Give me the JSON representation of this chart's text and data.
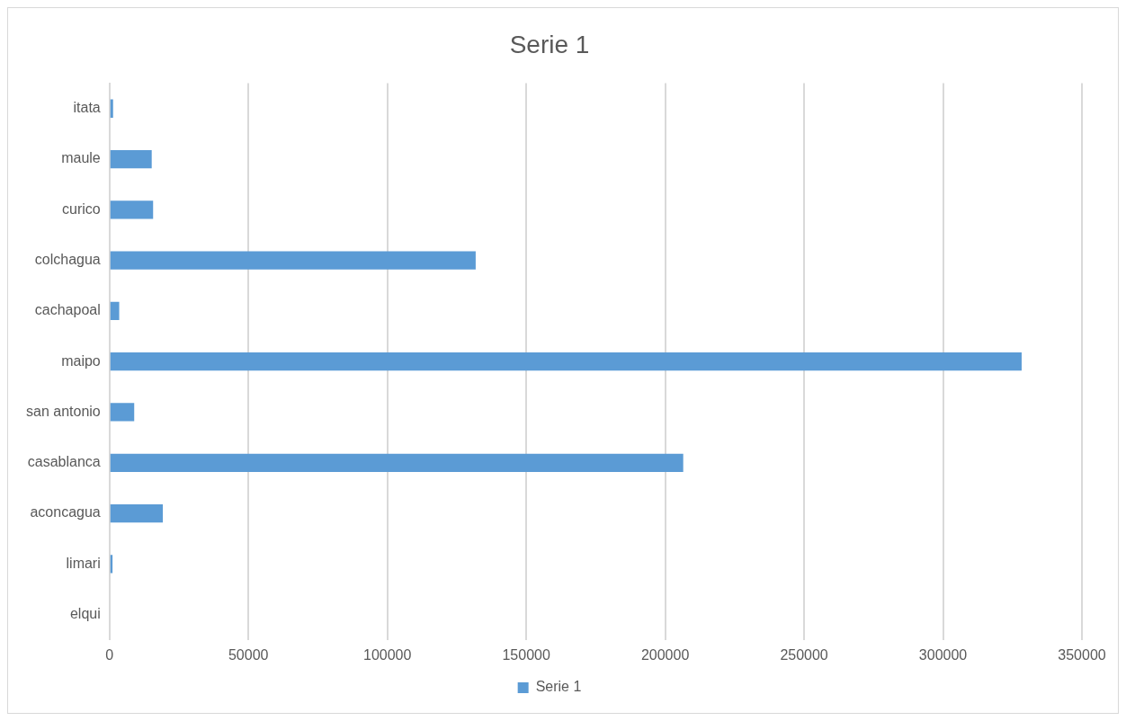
{
  "chart_data": {
    "type": "bar",
    "orientation": "horizontal",
    "title": "Serie 1",
    "categories": [
      "itata",
      "maule",
      "curico",
      "colchagua",
      "cachapoal",
      "maipo",
      "san antonio",
      "casablanca",
      "aconcagua",
      "limari",
      "elqui"
    ],
    "series": [
      {
        "name": "Serie 1",
        "color": "#5b9bd5",
        "values": [
          1300,
          15200,
          15700,
          131800,
          3500,
          328300,
          8900,
          206500,
          19200,
          1100,
          0
        ]
      }
    ],
    "xlim": [
      0,
      350000
    ],
    "xticks": [
      0,
      50000,
      100000,
      150000,
      200000,
      250000,
      300000,
      350000
    ],
    "grid": "x",
    "legend": "bottom"
  }
}
